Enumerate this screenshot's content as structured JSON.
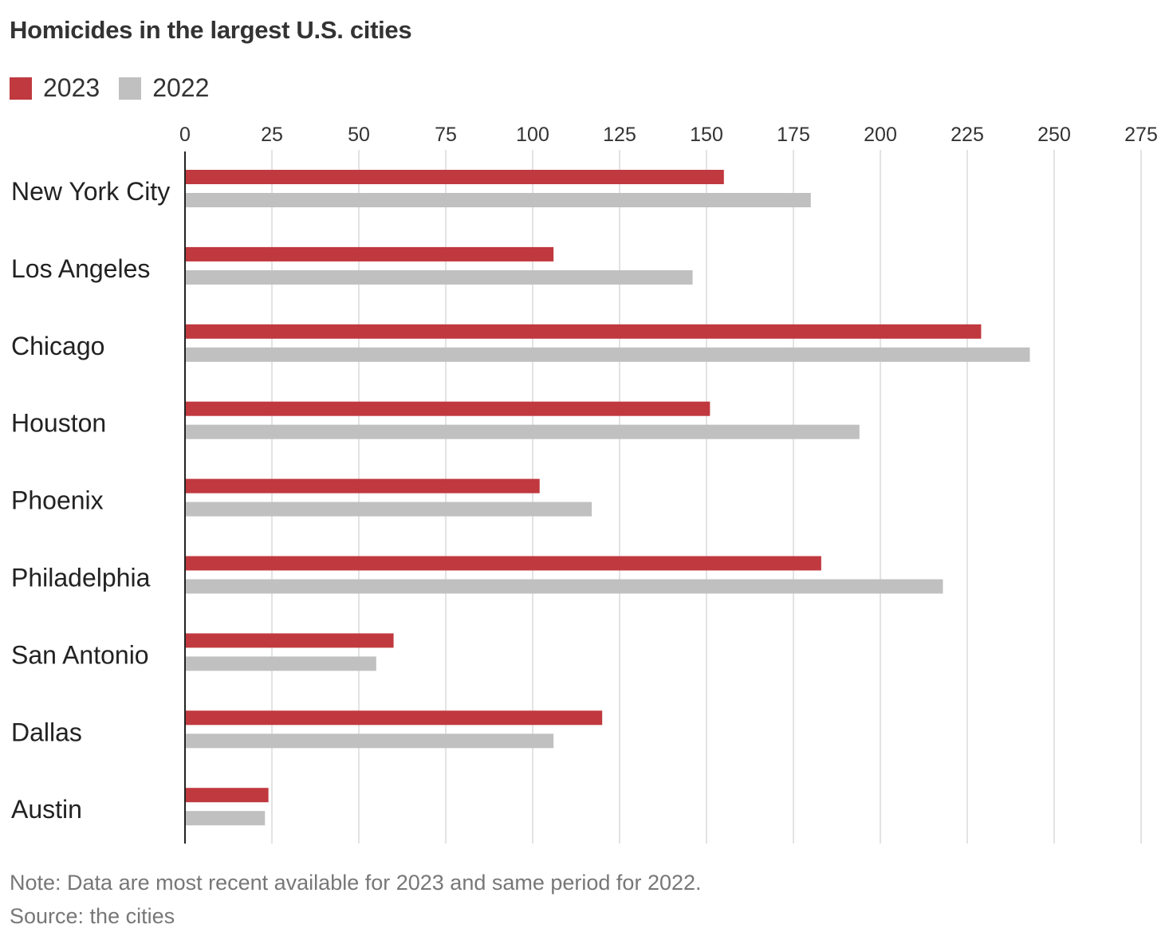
{
  "chart_data": {
    "type": "bar",
    "orientation": "horizontal",
    "title": "Homicides in the largest U.S. cities",
    "categories": [
      "New York City",
      "Los Angeles",
      "Chicago",
      "Houston",
      "Phoenix",
      "Philadelphia",
      "San Antonio",
      "Dallas",
      "Austin"
    ],
    "series": [
      {
        "name": "2023",
        "color": "#c0393f",
        "values": [
          155,
          106,
          229,
          151,
          102,
          183,
          60,
          120,
          24
        ]
      },
      {
        "name": "2022",
        "color": "#c0c0c0",
        "values": [
          180,
          146,
          243,
          194,
          117,
          218,
          55,
          106,
          23
        ]
      }
    ],
    "xlim": [
      0,
      275
    ],
    "xticks": [
      0,
      25,
      50,
      75,
      100,
      125,
      150,
      175,
      200,
      225,
      250,
      275
    ],
    "grid": true,
    "legend_position": "top-left",
    "axis_position": "top",
    "note": "Note: Data are most recent available for 2023 and same period for 2022.",
    "source": "Source: the cities"
  }
}
